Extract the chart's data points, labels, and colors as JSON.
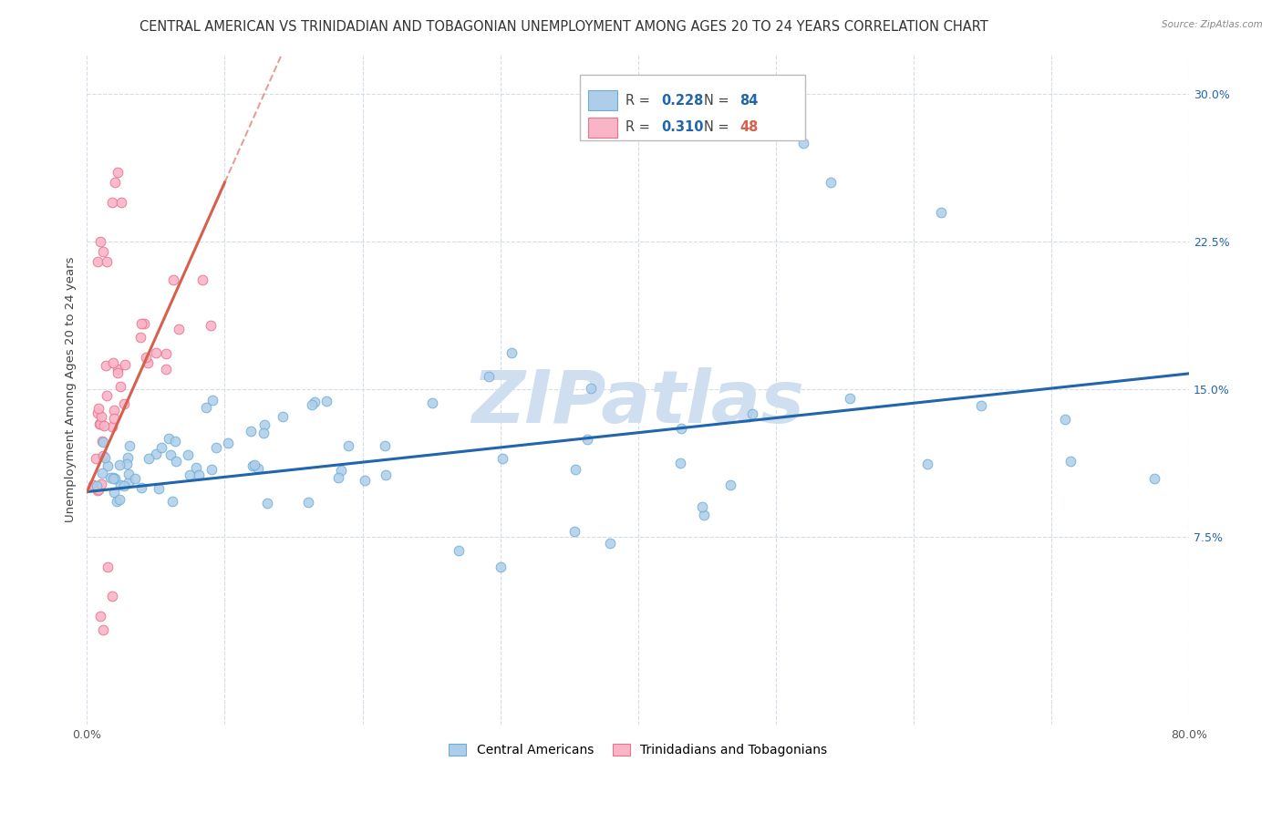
{
  "title": "CENTRAL AMERICAN VS TRINIDADIAN AND TOBAGONIAN UNEMPLOYMENT AMONG AGES 20 TO 24 YEARS CORRELATION CHART",
  "source": "Source: ZipAtlas.com",
  "ylabel": "Unemployment Among Ages 20 to 24 years",
  "xlim": [
    0,
    0.8
  ],
  "ylim": [
    -0.02,
    0.32
  ],
  "ytick_positions": [
    0.075,
    0.15,
    0.225,
    0.3
  ],
  "yticklabels": [
    "7.5%",
    "15.0%",
    "22.5%",
    "30.0%"
  ],
  "blue_color": "#aecde8",
  "blue_edge": "#6aaed6",
  "pink_color": "#f9b4c8",
  "pink_edge": "#e8748c",
  "blue_line_color": "#2166ac",
  "pink_line_color": "#d6604d",
  "grid_color": "#d4dce8",
  "background_color": "#ffffff",
  "watermark": "ZIPatlas",
  "watermark_color": "#d0dff0",
  "legend_R_blue": "0.228",
  "legend_N_blue": "84",
  "legend_R_pink": "0.310",
  "legend_N_pink": "48",
  "legend_label_blue": "Central Americans",
  "legend_label_pink": "Trinidadians and Tobagonians",
  "title_fontsize": 10.5,
  "axis_label_fontsize": 9.5,
  "tick_fontsize": 9,
  "marker_size": 60,
  "blue_trend_x0": 0.0,
  "blue_trend_y0": 0.098,
  "blue_trend_x1": 0.8,
  "blue_trend_y1": 0.158,
  "pink_trend_x0": 0.0,
  "pink_trend_y0": 0.098,
  "pink_trend_x1": 0.1,
  "pink_trend_y1": 0.255
}
